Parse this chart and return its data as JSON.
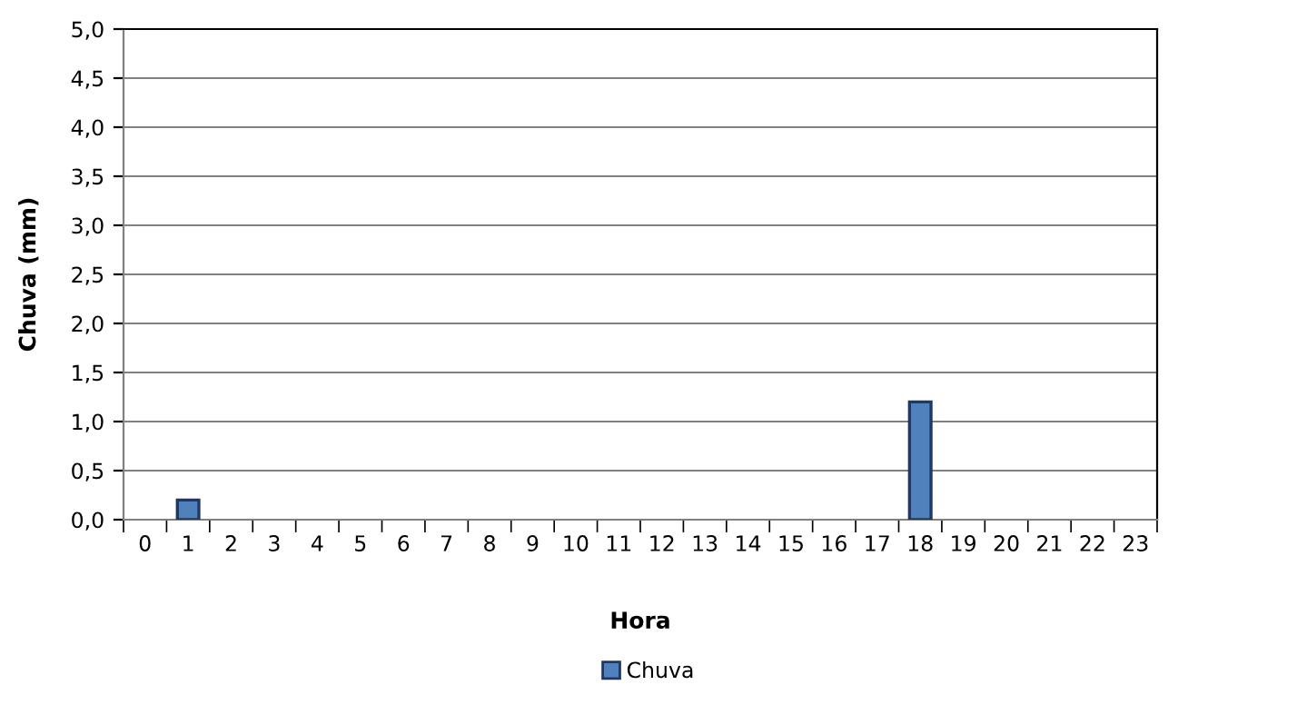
{
  "chart_data": {
    "type": "bar",
    "xlabel": "Hora",
    "ylabel": "Chuva (mm)",
    "categories": [
      "0",
      "1",
      "2",
      "3",
      "4",
      "5",
      "6",
      "7",
      "8",
      "9",
      "10",
      "11",
      "12",
      "13",
      "14",
      "15",
      "16",
      "17",
      "18",
      "19",
      "20",
      "21",
      "22",
      "23"
    ],
    "series": [
      {
        "name": "Chuva",
        "color": "#4f81bd",
        "values": [
          0,
          0.2,
          0,
          0,
          0,
          0,
          0,
          0,
          0,
          0,
          0,
          0,
          0,
          0,
          0,
          0,
          0,
          0,
          1.2,
          0,
          0,
          0,
          0,
          0
        ]
      }
    ],
    "ylim": [
      0,
      5
    ],
    "yticks": [
      {
        "value": 0,
        "label": "0,0"
      },
      {
        "value": 0.5,
        "label": "0,5"
      },
      {
        "value": 1,
        "label": "1,0"
      },
      {
        "value": 1.5,
        "label": "1,5"
      },
      {
        "value": 2,
        "label": "2,0"
      },
      {
        "value": 2.5,
        "label": "2,5"
      },
      {
        "value": 3,
        "label": "3,0"
      },
      {
        "value": 3.5,
        "label": "3,5"
      },
      {
        "value": 4,
        "label": "4,0"
      },
      {
        "value": 4.5,
        "label": "4,5"
      },
      {
        "value": 5,
        "label": "5,0"
      }
    ],
    "grid": "y",
    "legend": "bottom"
  }
}
